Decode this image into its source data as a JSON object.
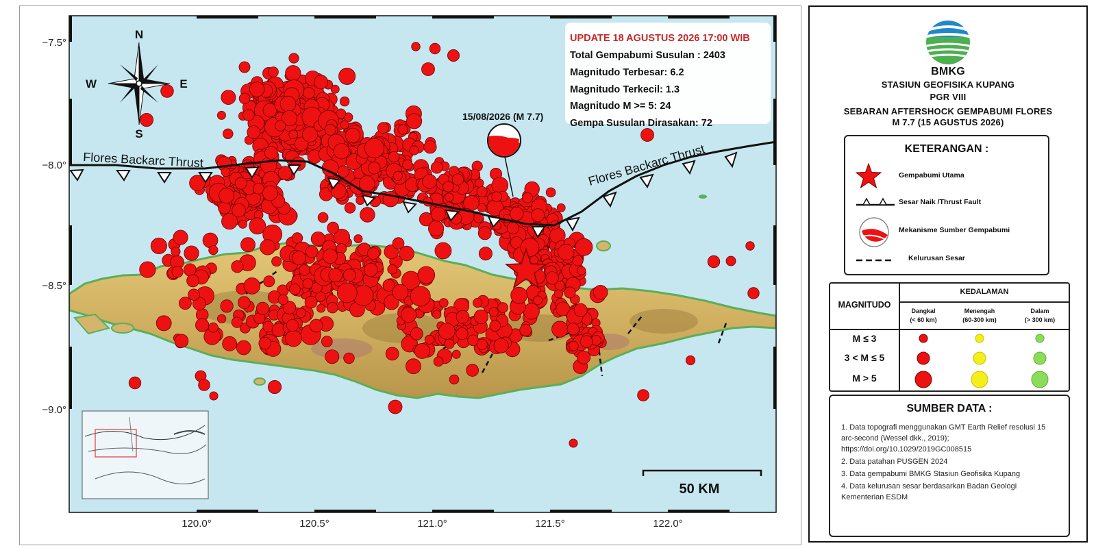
{
  "map": {
    "info_box": {
      "update": "UPDATE 18 AGUSTUS 2026 17:00 WIB",
      "lines": [
        "Total Gempabumi Susulan : 2403",
        "Magnitudo Terbesar: 6.2",
        "Magnitudo Terkecil: 1.3",
        "Magnitudo M >= 5: 24",
        "Gempa Susulan Dirasakan: 72"
      ]
    },
    "mainshock_label": "15/08/2026 (M 7.7)",
    "fault_labels": [
      "Flores Backarc Thrust",
      "Flores Backarc Thrust"
    ],
    "lat_ticks": [
      "−7.5°",
      "−8.0°",
      "−8.5°",
      "−9.0°"
    ],
    "lon_ticks": [
      "120.0°",
      "120.5°",
      "121.0°",
      "121.5°",
      "122.0°"
    ],
    "scale_bar": "50 KM",
    "compass": {
      "n": "N",
      "s": "S",
      "e": "E",
      "w": "W"
    },
    "colors": {
      "sea": "#c6e7f0",
      "land": "#d4b56b",
      "land_green": "#6fbf6a",
      "event": "#ee1111",
      "fault": "#111111",
      "update_text": "#c62828"
    }
  },
  "panel": {
    "logo_text": "BMKG",
    "station": "STASIUN GEOFISIKA KUPANG",
    "pgr": "PGR VIII",
    "title_line1": "SEBARAN AFTERSHOCK GEMPABUMI FLORES",
    "title_line2": "M 7.7 (15 AGUSTUS 2026)",
    "legend": {
      "heading": "KETERANGAN :",
      "items": [
        "Gempabumi  Utama",
        "Sesar Naik /Thrust Fault",
        "Mekanisme Sumber Gempabumi",
        "Kelurusan Sesar"
      ]
    },
    "depth": {
      "heading": "KEDALAMAN",
      "magnitudo": "MAGNITUDO",
      "columns": [
        {
          "name": "Dangkal",
          "range": "(< 60 km)",
          "color": "#ee1111"
        },
        {
          "name": "Menengah",
          "range": "(60-300 km)",
          "color": "#f5ee1a"
        },
        {
          "name": "Dalam",
          "range": "(> 300 km)",
          "color": "#8cdc5a"
        }
      ],
      "rows": [
        "M ≤ 3",
        "3 < M ≤ 5",
        "M > 5"
      ]
    },
    "sources": {
      "heading": "SUMBER DATA :",
      "items": [
        "1. Data topografi menggunakan GMT Earth Relief resolusi 15 arc-second (Wessel dkk., 2019); https://doi.org/10.1029/2019GC008515",
        "2. Data patahan PUSGEN 2024",
        "3. Data gempabumi BMKG Stasiun Geofisika Kupang",
        "4. Data kelurusan sesar berdasarkan Badan Geologi Kementerian ESDM"
      ]
    }
  }
}
